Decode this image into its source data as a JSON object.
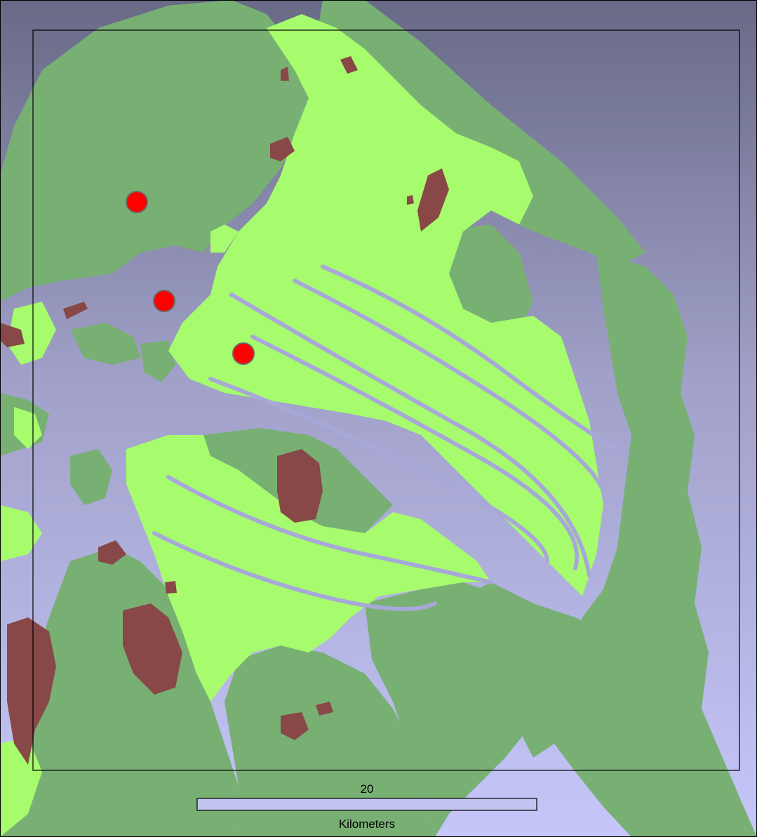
{
  "map": {
    "colors": {
      "water_top": "#686a86",
      "water_bottom": "#c6c6fa",
      "upland": "#78b074",
      "lowland": "#a6fc6c",
      "outcrop": "#884848",
      "site_marker": "#ff0000",
      "frame": "#000000"
    },
    "scale_bar": {
      "value": "20",
      "units": "Kilometers"
    },
    "site_markers": [
      {
        "id": "site-1"
      },
      {
        "id": "site-2"
      },
      {
        "id": "site-3"
      }
    ]
  }
}
